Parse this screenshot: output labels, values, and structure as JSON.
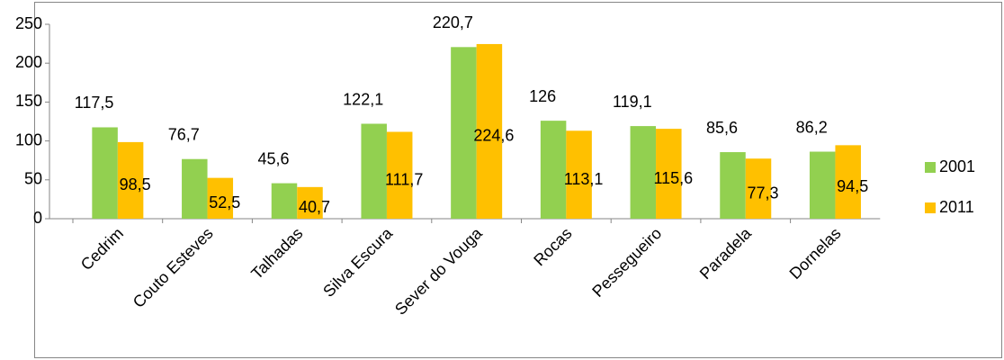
{
  "chart_data": {
    "type": "bar",
    "categories": [
      "Cedrim",
      "Couto Esteves",
      "Talhadas",
      "Silva Escura",
      "Sever do Vouga",
      "Rocas",
      "Pessegueiro",
      "Paradela",
      "Dornelas"
    ],
    "series": [
      {
        "name": "2001",
        "color": "#92d050",
        "values": [
          117.5,
          76.7,
          45.6,
          122.1,
          220.7,
          126,
          119.1,
          85.6,
          86.2
        ],
        "value_labels": [
          "117,5",
          "76,7",
          "45,6",
          "122,1",
          "220,7",
          "126",
          "119,1",
          "85,6",
          "86,2"
        ]
      },
      {
        "name": "2011",
        "color": "#ffc000",
        "values": [
          98.5,
          52.5,
          40.7,
          111.7,
          224.6,
          113.1,
          115.6,
          77.3,
          94.5
        ],
        "value_labels": [
          "98,5",
          "52,5",
          "40,7",
          "111,7",
          "224,6",
          "113,1",
          "115,6",
          "77,3",
          "94,5"
        ]
      }
    ],
    "ylim": [
      0,
      250
    ],
    "yticks": [
      0,
      50,
      100,
      150,
      200,
      250
    ],
    "grid": false,
    "legend": "right"
  }
}
